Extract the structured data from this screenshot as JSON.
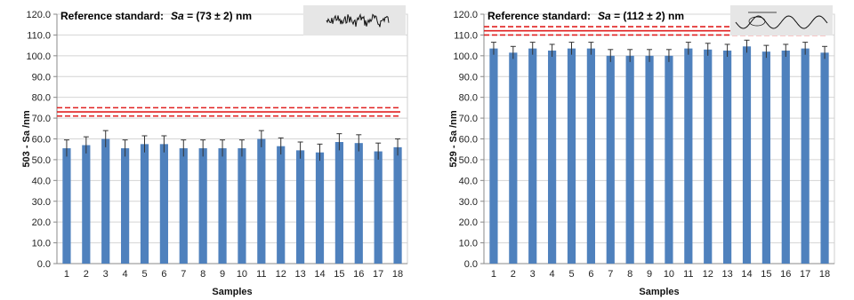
{
  "chart_data": [
    {
      "type": "bar",
      "ylabel": "503 - Sa /nm",
      "xlabel": "Samples",
      "ylim": [
        0,
        120
      ],
      "ytick_step": 10,
      "ytick_labels": [
        "0.0",
        "10.0",
        "20.0",
        "30.0",
        "40.0",
        "50.0",
        "60.0",
        "70.0",
        "80.0",
        "90.0",
        "100.0",
        "110.0",
        "120.0"
      ],
      "categories": [
        "1",
        "2",
        "3",
        "4",
        "5",
        "6",
        "7",
        "8",
        "9",
        "10",
        "11",
        "12",
        "13",
        "14",
        "15",
        "16",
        "17",
        "18"
      ],
      "values": [
        55.5,
        57,
        60,
        55.5,
        57.5,
        57.5,
        55.5,
        55.5,
        55.5,
        55.5,
        60,
        56.5,
        54.5,
        53.5,
        58.5,
        58,
        54,
        56
      ],
      "errors": [
        4,
        4,
        4,
        4,
        4,
        4,
        4,
        4,
        4,
        4,
        4,
        4,
        4,
        4,
        4,
        4,
        4,
        4
      ],
      "bar_color": "#4f81bd",
      "reference": {
        "label_prefix": "Reference standard:",
        "label_symbol": "Sa",
        "label_value": " = (73 ± 2) nm",
        "value": 73,
        "uncertainty": 2,
        "color": "#e02020"
      },
      "grid": true
    },
    {
      "type": "bar",
      "ylabel": "529 - Sa /nm",
      "xlabel": "Samples",
      "ylim": [
        0,
        120
      ],
      "ytick_step": 10,
      "ytick_labels": [
        "0.0",
        "10.0",
        "20.0",
        "30.0",
        "40.0",
        "50.0",
        "60.0",
        "70.0",
        "80.0",
        "90.0",
        "100.0",
        "110.0",
        "120.0"
      ],
      "categories": [
        "1",
        "2",
        "3",
        "4",
        "5",
        "6",
        "7",
        "8",
        "9",
        "10",
        "11",
        "12",
        "13",
        "14",
        "15",
        "16",
        "17",
        "18"
      ],
      "values": [
        103.5,
        101.5,
        103.5,
        102.5,
        103.5,
        103.5,
        100,
        100,
        100,
        100,
        103.5,
        103,
        102.5,
        104.5,
        102,
        102.5,
        103.5,
        101.5
      ],
      "errors": [
        3,
        3,
        3,
        3,
        3,
        3,
        3,
        3,
        3,
        3,
        3,
        3,
        3,
        3,
        3,
        3,
        3,
        3
      ],
      "bar_color": "#4f81bd",
      "reference": {
        "label_prefix": "Reference standard:",
        "label_symbol": "Sa",
        "label_value": " = (112 ± 2) nm",
        "value": 112,
        "uncertainty": 2,
        "color": "#e02020"
      },
      "grid": true
    }
  ]
}
